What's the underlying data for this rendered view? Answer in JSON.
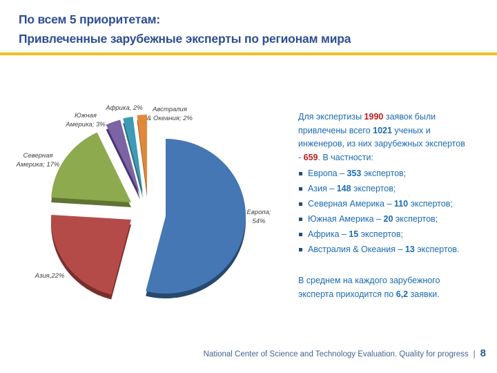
{
  "slide": {
    "title": {
      "line1": "По всем 5 приоритетам:",
      "line2": "Привлеченные зарубежные эксперты по регионам мира",
      "color": "#2D4E92"
    },
    "accent_rule_color": "#F2BE1B",
    "background_color": "#FFFFFF"
  },
  "chart_data": {
    "type": "pie",
    "style": "3d-exploded",
    "legend": "none",
    "labels_position": "outside",
    "label_color": "#3F3F3F",
    "slices": [
      {
        "name": "Европа",
        "pct": 54,
        "experts": 353,
        "color": "#4577B4",
        "side_color": "#27496E",
        "callout_lines": [
          "Европа;",
          "54%"
        ]
      },
      {
        "name": "Азия",
        "pct": 22,
        "experts": 148,
        "color": "#B54B48",
        "side_color": "#7A2E2C",
        "callout_lines": [
          "Азия,22%"
        ]
      },
      {
        "name": "Северная Америка",
        "pct": 17,
        "experts": 110,
        "color": "#8DAA4F",
        "side_color": "#5F7434",
        "callout_lines": [
          "Северная",
          "Америка; 17%"
        ]
      },
      {
        "name": "Южная Америка",
        "pct": 3,
        "experts": 20,
        "color": "#7B63A4",
        "side_color": "#4A3570",
        "callout_lines": [
          "Южная",
          "Америка; 3%"
        ]
      },
      {
        "name": "Африка",
        "pct": 2,
        "experts": 15,
        "color": "#3F9AB5",
        "side_color": "#27677A",
        "callout_lines": [
          "Африка, 2%"
        ]
      },
      {
        "name": "Австралия & Океания",
        "pct": 2,
        "experts": 13,
        "color": "#E0893B",
        "side_color": "#9E5B1F",
        "callout_lines": [
          "Австралия",
          "& Океания; 2%"
        ]
      }
    ]
  },
  "info_panel": {
    "text_color": "#1A6AAF",
    "number_color": "#C11B1B",
    "bullet_marker_color": "#1F4E79",
    "intro": [
      {
        "text": "Для экспертизы "
      },
      {
        "text": "1990",
        "style": "red"
      },
      {
        "text": " заявок были привлечены всего "
      },
      {
        "text": "1021",
        "style": "bold"
      },
      {
        "text": " ученых и инженеров, из них зарубежных экспертов - "
      },
      {
        "text": "659",
        "style": "red"
      },
      {
        "text": ". В частности:"
      }
    ],
    "bullets": [
      {
        "segments": [
          {
            "text": "Европа – "
          },
          {
            "text": "353",
            "style": "bold"
          },
          {
            "text": " экспертов;"
          }
        ]
      },
      {
        "segments": [
          {
            "text": "Азия – "
          },
          {
            "text": "148",
            "style": "bold"
          },
          {
            "text": " экспертов;"
          }
        ]
      },
      {
        "segments": [
          {
            "text": "Северная Америка – "
          },
          {
            "text": "110",
            "style": "bold"
          },
          {
            "text": " экспертов;"
          }
        ]
      },
      {
        "segments": [
          {
            "text": "Южная Америка – "
          },
          {
            "text": "20",
            "style": "bold"
          },
          {
            "text": " экспертов;"
          }
        ]
      },
      {
        "segments": [
          {
            "text": "Африка – "
          },
          {
            "text": "15",
            "style": "bold"
          },
          {
            "text": " экспертов;"
          }
        ]
      },
      {
        "segments": [
          {
            "text": "Австралия & Океания – "
          },
          {
            "text": "13",
            "style": "bold"
          },
          {
            "text": " экспертов."
          }
        ]
      }
    ],
    "summary": [
      {
        "text": "В среднем на каждого зарубежного эксперта приходится по "
      },
      {
        "text": "6,2",
        "style": "bold"
      },
      {
        "text": " заявки."
      }
    ]
  },
  "footer": {
    "text": "National Center of Science and Technology Evaluation. Quality for progress",
    "separator": "|",
    "page_number": "8",
    "color": "#40658E"
  }
}
